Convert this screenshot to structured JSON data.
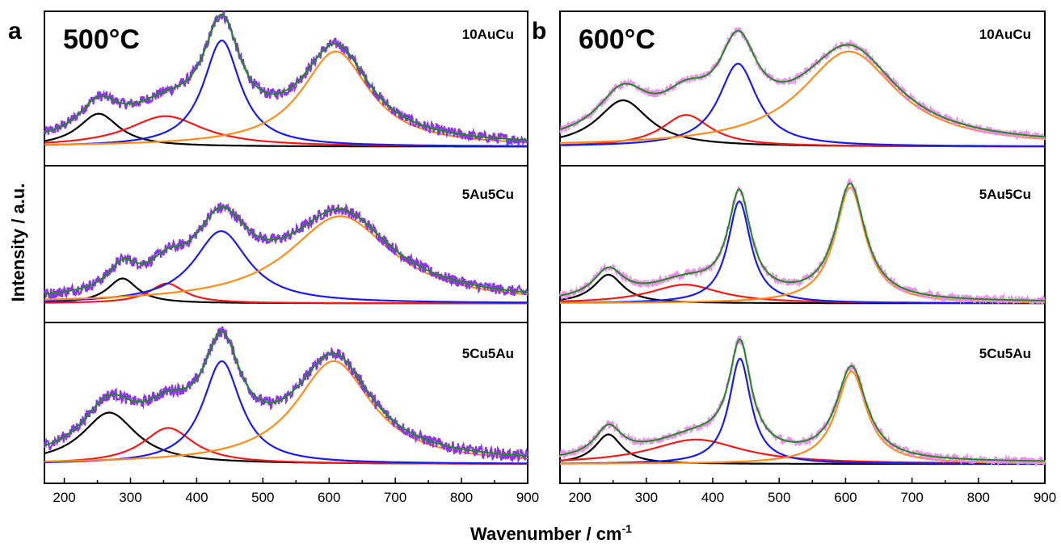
{
  "figure": {
    "xlabel": "Wavenumber / cm",
    "xlabel_sup": "-1",
    "ylabel": "Intensity / a.u."
  },
  "colors": {
    "peak1": "#000000",
    "peak2": "#ee1c1c",
    "peak3": "#1c1ce8",
    "peak4": "#ff8c1a",
    "envelope": "#1e8c1e",
    "data_500": "#8b35e8",
    "data_600": "#f08cf0"
  },
  "chart_data": [
    {
      "panel": "a",
      "title": "500°C",
      "type": "line",
      "xlim": [
        170,
        900
      ],
      "xticks": [
        200,
        300,
        400,
        500,
        600,
        700,
        800,
        900
      ],
      "grid": false,
      "subplots": [
        {
          "sample": "10AuCu",
          "baseline": 0.05,
          "peaks": [
            {
              "center": 252,
              "amplitude": 0.27,
              "fwhm": 75
            },
            {
              "center": 353,
              "amplitude": 0.25,
              "fwhm": 140
            },
            {
              "center": 438,
              "amplitude": 0.87,
              "fwhm": 68
            },
            {
              "center": 610,
              "amplitude": 0.78,
              "fwhm": 125
            }
          ]
        },
        {
          "sample": "5Au5Cu",
          "baseline": 0.05,
          "peaks": [
            {
              "center": 288,
              "amplitude": 0.2,
              "fwhm": 55
            },
            {
              "center": 355,
              "amplitude": 0.16,
              "fwhm": 65
            },
            {
              "center": 437,
              "amplitude": 0.58,
              "fwhm": 100
            },
            {
              "center": 617,
              "amplitude": 0.7,
              "fwhm": 190
            }
          ]
        },
        {
          "sample": "5Cu5Au",
          "baseline": 0.05,
          "peaks": [
            {
              "center": 268,
              "amplitude": 0.4,
              "fwhm": 100
            },
            {
              "center": 357,
              "amplitude": 0.28,
              "fwhm": 95
            },
            {
              "center": 438,
              "amplitude": 0.8,
              "fwhm": 70
            },
            {
              "center": 607,
              "amplitude": 0.8,
              "fwhm": 140
            }
          ]
        }
      ]
    },
    {
      "panel": "b",
      "title": "600°C",
      "type": "line",
      "xlim": [
        170,
        900
      ],
      "xticks": [
        200,
        300,
        400,
        500,
        600,
        700,
        800,
        900
      ],
      "grid": false,
      "subplots": [
        {
          "sample": "10AuCu",
          "baseline": 0.05,
          "peaks": [
            {
              "center": 265,
              "amplitude": 0.38,
              "fwhm": 95
            },
            {
              "center": 360,
              "amplitude": 0.26,
              "fwhm": 90
            },
            {
              "center": 438,
              "amplitude": 0.68,
              "fwhm": 70
            },
            {
              "center": 605,
              "amplitude": 0.78,
              "fwhm": 175
            }
          ]
        },
        {
          "sample": "5Au5Cu",
          "baseline": 0.05,
          "peaks": [
            {
              "center": 243,
              "amplitude": 0.23,
              "fwhm": 55
            },
            {
              "center": 358,
              "amplitude": 0.15,
              "fwhm": 130
            },
            {
              "center": 440,
              "amplitude": 0.82,
              "fwhm": 42
            },
            {
              "center": 607,
              "amplitude": 0.93,
              "fwhm": 55
            }
          ]
        },
        {
          "sample": "5Cu5Au",
          "baseline": 0.05,
          "peaks": [
            {
              "center": 243,
              "amplitude": 0.23,
              "fwhm": 50
            },
            {
              "center": 375,
              "amplitude": 0.19,
              "fwhm": 170
            },
            {
              "center": 441,
              "amplitude": 0.82,
              "fwhm": 40
            },
            {
              "center": 609,
              "amplitude": 0.72,
              "fwhm": 55
            }
          ]
        }
      ]
    }
  ]
}
